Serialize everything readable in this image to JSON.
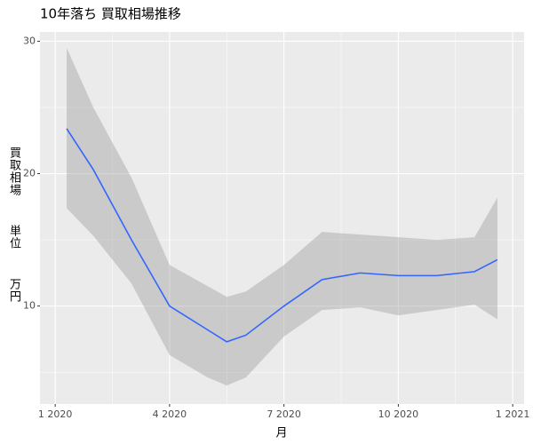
{
  "chart_data": {
    "type": "line",
    "title": "10年落ち 買取相場推移",
    "x_label": "月",
    "y_label": "買取相場  単位  万円",
    "x": [
      0.3,
      1,
      2,
      3,
      4,
      4.5,
      5,
      6,
      7,
      8,
      9,
      10,
      11,
      11.6
    ],
    "values": [
      23.4,
      20.3,
      15.0,
      10.0,
      8.2,
      7.3,
      7.8,
      10.0,
      12.0,
      12.5,
      12.3,
      12.3,
      12.6,
      13.5
    ],
    "lower": [
      17.4,
      15.3,
      11.7,
      6.3,
      4.6,
      4.0,
      4.6,
      7.7,
      9.7,
      9.9,
      9.3,
      9.7,
      10.1,
      9.0
    ],
    "upper": [
      29.5,
      25.0,
      19.7,
      13.1,
      11.5,
      10.7,
      11.1,
      13.1,
      15.6,
      15.4,
      15.2,
      15.0,
      15.2,
      18.2
    ],
    "color": "#3366ff",
    "band_color": "#999999",
    "xlim": [
      -0.4,
      12.3
    ],
    "ylim": [
      2.6,
      30.7
    ],
    "xticks": [
      {
        "value": 0,
        "label": "1 2020"
      },
      {
        "value": 3,
        "label": "4 2020"
      },
      {
        "value": 6,
        "label": "7 2020"
      },
      {
        "value": 9,
        "label": "10 2020"
      },
      {
        "value": 12,
        "label": "1 2021"
      }
    ],
    "yticks": [
      10,
      20,
      30
    ],
    "x_minor_ticks": [
      1.5,
      4.5,
      7.5,
      10.5
    ],
    "y_minor_ticks": [
      5,
      15,
      25
    ],
    "grid": true
  }
}
